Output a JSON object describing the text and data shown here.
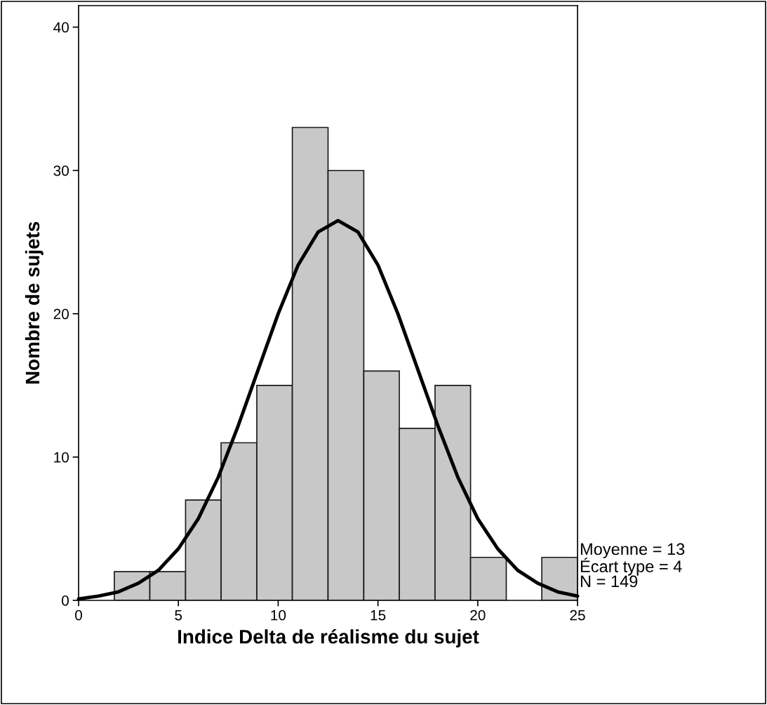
{
  "chart_data": {
    "type": "histogram",
    "xlabel": "Indice Delta de réalisme du sujet",
    "ylabel": "Nombre de sujets",
    "bins": [
      0,
      1.79,
      3.57,
      5.36,
      7.14,
      8.93,
      10.71,
      12.5,
      14.29,
      16.07,
      17.86,
      19.64,
      21.43,
      23.21,
      25
    ],
    "values": [
      0,
      2,
      2,
      7,
      11,
      15,
      33,
      30,
      16,
      12,
      15,
      3,
      0,
      3
    ],
    "color": "#c8c8c8",
    "series": [
      {
        "type": "line",
        "color": "#000000",
        "x": [
          0,
          1,
          2,
          3,
          4,
          5,
          6,
          7,
          8,
          9,
          10,
          11,
          12,
          13,
          14,
          15,
          16,
          17,
          18,
          19,
          20,
          21,
          22,
          23,
          24,
          25
        ],
        "values": [
          0.1,
          0.3,
          0.6,
          1.2,
          2.1,
          3.6,
          5.7,
          8.6,
          12.2,
          16.1,
          20.0,
          23.4,
          25.7,
          26.5,
          25.7,
          23.4,
          20.0,
          16.1,
          12.2,
          8.6,
          5.7,
          3.6,
          2.1,
          1.2,
          0.6,
          0.3
        ]
      }
    ],
    "xlim": [
      0,
      25
    ],
    "ylim": [
      0,
      41.5
    ],
    "xticks": [
      0,
      5,
      10,
      15,
      20,
      25
    ],
    "yticks": [
      0,
      10,
      20,
      30,
      40
    ],
    "grid": false,
    "legend": false,
    "annotations": [
      "Moyenne = 13",
      "Écart type = 4",
      "N = 149"
    ]
  }
}
